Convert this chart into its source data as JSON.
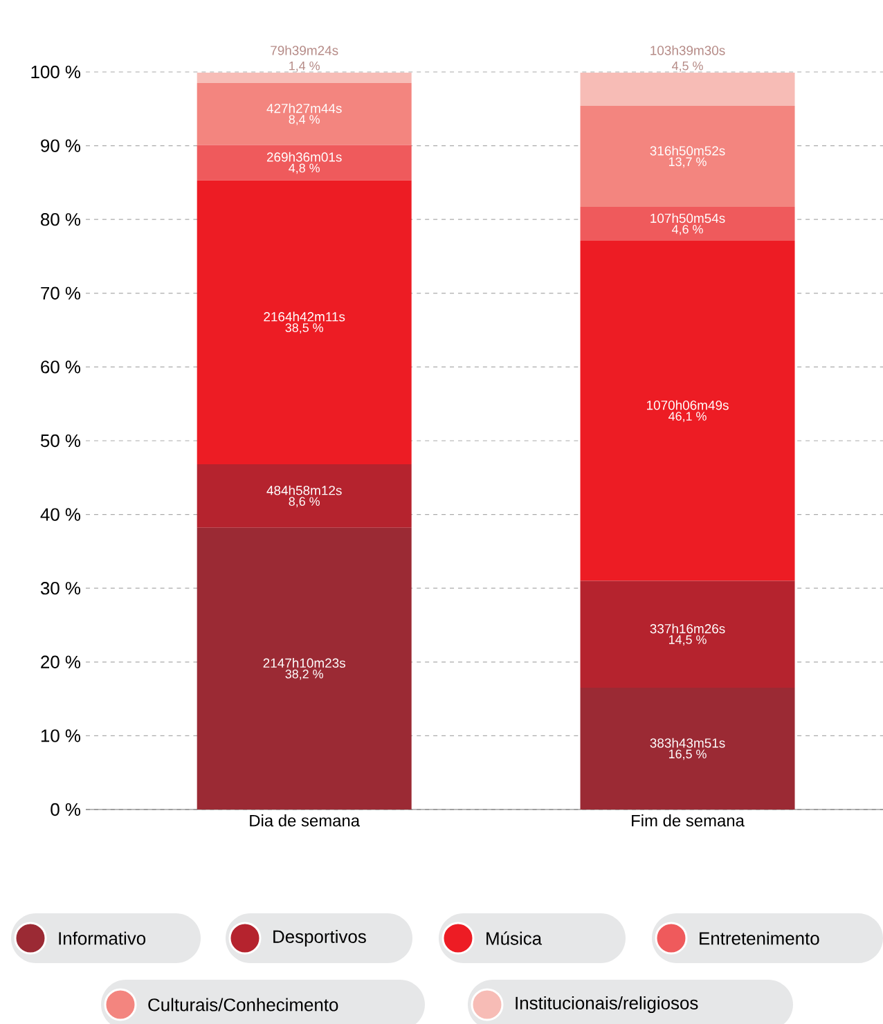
{
  "chart_data": {
    "type": "bar",
    "stacked": true,
    "categories": [
      "Dia de semana",
      "Fim de semana"
    ],
    "series": [
      {
        "name": "Informativo",
        "color": "#9b2a34",
        "values": [
          38.2,
          16.5
        ],
        "value_labels": [
          "38,2 %",
          "16,5 %"
        ]
      },
      {
        "name": "Desportivos",
        "color": "#b5232e",
        "values": [
          8.6,
          14.5
        ],
        "value_labels": [
          "8,6 %",
          "14,5 %"
        ]
      },
      {
        "name": "Música",
        "color": "#ed1c24",
        "values": [
          38.5,
          46.1
        ],
        "value_labels": [
          "38,5 %",
          "46,1 %"
        ]
      },
      {
        "name": "Entretenimento",
        "color": "#ef5a5c",
        "values": [
          4.8,
          4.6
        ],
        "value_labels": [
          "4,8 %",
          "4,6 %"
        ]
      },
      {
        "name": "Culturais/Conhecimento",
        "color": "#f3857f",
        "values": [
          8.4,
          13.7
        ],
        "value_labels": [
          "8,4 %",
          "13,7 %"
        ]
      },
      {
        "name": "Institucionais/religiosos",
        "color": "#f7bcb6",
        "values": [
          1.4,
          4.5
        ],
        "value_labels": [
          "1,4 %",
          "4,5 %"
        ]
      }
    ],
    "annotations": [
      "2147h10m23s",
      "383h43m51s",
      "484h58m12s",
      "337h16m26s",
      "2164h42m11s",
      "1070h06m49s",
      "269h36m01s",
      "107h50m54s",
      "427h27m44s",
      "316h50m52s",
      "79h39m24s",
      "103h39m30s"
    ],
    "ylim": [
      0,
      100
    ],
    "yticks": [
      {
        "value": 0,
        "label": "0 %"
      },
      {
        "value": 10,
        "label": "10 %"
      },
      {
        "value": 20,
        "label": "20 %"
      },
      {
        "value": 30,
        "label": "30 %"
      },
      {
        "value": 40,
        "label": "40 %"
      },
      {
        "value": 50,
        "label": "50 %"
      },
      {
        "value": 60,
        "label": "60 %"
      },
      {
        "value": 70,
        "label": "70 %"
      },
      {
        "value": 80,
        "label": "80 %"
      },
      {
        "value": 90,
        "label": "90 %"
      },
      {
        "value": 100,
        "label": "100 %"
      }
    ],
    "grid": "y",
    "legend": "bottom"
  }
}
